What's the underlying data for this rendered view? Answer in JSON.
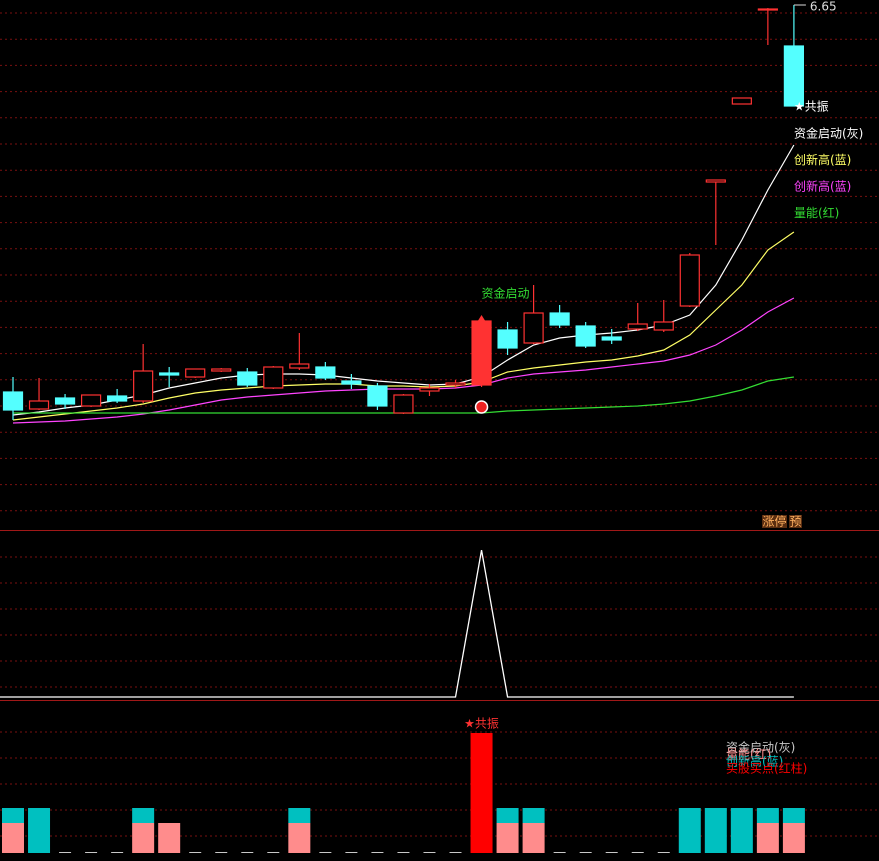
{
  "chart_data": [
    {
      "type": "candlestick",
      "ylim": [
        4.025,
        6.675
      ],
      "up_color": "#ff3232",
      "down_color": "#54ffff",
      "open": [
        4.715,
        4.63,
        4.685,
        4.645,
        4.695,
        4.67,
        4.81,
        4.79,
        4.82,
        4.815,
        4.735,
        4.835,
        4.84,
        4.77,
        4.745,
        4.61,
        4.72,
        4.75,
        4.75,
        5.025,
        4.96,
        5.11,
        5.045,
        4.99,
        5.03,
        5.025,
        5.145,
        5.765,
        6.155,
        6.625,
        6.445
      ],
      "high": [
        4.79,
        4.785,
        4.705,
        4.7,
        4.73,
        4.955,
        4.84,
        4.83,
        4.835,
        4.835,
        4.845,
        5.01,
        4.865,
        4.805,
        4.76,
        4.705,
        4.755,
        4.775,
        5.07,
        5.065,
        5.25,
        5.15,
        5.065,
        5.03,
        5.16,
        5.175,
        5.41,
        5.775,
        6.185,
        6.635,
        6.65
      ],
      "low": [
        4.575,
        4.625,
        4.63,
        4.64,
        4.66,
        4.66,
        4.74,
        4.785,
        4.815,
        4.74,
        4.73,
        4.825,
        4.775,
        4.73,
        4.625,
        4.605,
        4.695,
        4.735,
        4.74,
        4.9,
        4.955,
        5.035,
        4.935,
        4.955,
        5.02,
        5.015,
        5.14,
        5.45,
        6.155,
        6.45,
        6.145
      ],
      "close": [
        4.625,
        4.67,
        4.655,
        4.7,
        4.67,
        4.82,
        4.8,
        4.83,
        4.83,
        4.75,
        4.84,
        4.855,
        4.785,
        4.755,
        4.645,
        4.7,
        4.735,
        4.76,
        5.07,
        4.935,
        5.11,
        5.05,
        4.945,
        4.975,
        5.055,
        5.065,
        5.4,
        5.775,
        6.185,
        6.63,
        6.145
      ],
      "series": [
        {
          "name": "资金启动(灰)",
          "color": "#ffffff",
          "values": [
            4.6,
            4.615,
            4.635,
            4.65,
            4.675,
            4.7,
            4.735,
            4.76,
            4.785,
            4.8,
            4.805,
            4.805,
            4.8,
            4.785,
            4.77,
            4.76,
            4.75,
            4.755,
            4.79,
            4.875,
            4.95,
            4.985,
            5.0,
            5.01,
            5.025,
            5.05,
            5.1,
            5.25,
            5.475,
            5.725,
            5.95
          ]
        },
        {
          "name": "创新高(蓝)",
          "color": "#ffff66",
          "values": [
            4.575,
            4.59,
            4.605,
            4.62,
            4.635,
            4.655,
            4.685,
            4.71,
            4.725,
            4.735,
            4.745,
            4.75,
            4.755,
            4.755,
            4.745,
            4.745,
            4.74,
            4.745,
            4.765,
            4.815,
            4.835,
            4.85,
            4.865,
            4.875,
            4.895,
            4.925,
            5.0,
            5.125,
            5.25,
            5.425,
            5.515
          ]
        },
        {
          "name": "创新高(蓝)",
          "color": "#ff44ff",
          "values": [
            4.56,
            4.565,
            4.57,
            4.58,
            4.59,
            4.605,
            4.625,
            4.65,
            4.675,
            4.69,
            4.7,
            4.71,
            4.72,
            4.725,
            4.73,
            4.73,
            4.73,
            4.735,
            4.75,
            4.785,
            4.805,
            4.815,
            4.825,
            4.84,
            4.855,
            4.87,
            4.9,
            4.95,
            5.025,
            5.115,
            5.185
          ]
        },
        {
          "name": "量能(红)",
          "color": "#33dd33",
          "values": [
            4.61,
            4.61,
            4.61,
            4.61,
            4.61,
            4.61,
            4.61,
            4.61,
            4.61,
            4.61,
            4.61,
            4.61,
            4.61,
            4.61,
            4.61,
            4.61,
            4.61,
            4.61,
            4.61,
            4.62,
            4.625,
            4.63,
            4.635,
            4.64,
            4.645,
            4.655,
            4.67,
            4.695,
            4.725,
            4.77,
            4.79
          ]
        }
      ],
      "annotations": [
        {
          "text": "资金启动",
          "index": 18,
          "position": "above",
          "color": "#33dd33"
        },
        {
          "text": "★共振",
          "index": 30,
          "position": "below",
          "color": "#ffffff"
        }
      ],
      "badges": [
        "涨停",
        "预"
      ]
    },
    {
      "type": "line",
      "ylim": [
        0,
        1.13
      ],
      "series": [
        {
          "color": "#ffffff",
          "values": [
            0,
            0,
            0,
            0,
            0,
            0,
            0,
            0,
            0,
            0,
            0,
            0,
            0,
            0,
            0,
            0,
            0,
            0,
            1,
            0,
            0,
            0,
            0,
            0,
            0,
            0,
            0,
            0,
            0,
            0,
            0
          ]
        }
      ]
    },
    {
      "type": "bar",
      "stacked": true,
      "ylim": [
        0,
        10
      ],
      "series": [
        {
          "name": "资金启动(灰)",
          "color": "#c8c8c8",
          "values": [
            0,
            0,
            0,
            0,
            0,
            0,
            0,
            0,
            0,
            0,
            0,
            0,
            0,
            0,
            0,
            0,
            0,
            0,
            0,
            0,
            0,
            0,
            0,
            0,
            0,
            0,
            0,
            0,
            0,
            0,
            0
          ]
        },
        {
          "name": "量能(红)",
          "color": "#ff8c8c",
          "values": [
            2,
            0,
            0,
            0,
            0,
            2,
            2,
            0,
            0,
            0,
            0,
            2,
            0,
            0,
            0,
            0,
            0,
            0,
            0,
            2,
            2,
            0,
            0,
            0,
            0,
            0,
            0,
            0,
            0,
            2,
            2
          ]
        },
        {
          "name": "创新高(蓝)",
          "color": "#00c0c0",
          "values": [
            1,
            3,
            0,
            0,
            0,
            1,
            0,
            0,
            0,
            0,
            0,
            1,
            0,
            0,
            0,
            0,
            0,
            0,
            0,
            1,
            1,
            0,
            0,
            0,
            0,
            0,
            3,
            3,
            3,
            1,
            1
          ]
        },
        {
          "name": "买股买点(红柱)",
          "color": "#ff0000",
          "values": [
            0,
            0,
            0,
            0,
            0,
            0,
            0,
            0,
            0,
            0,
            0,
            0,
            0,
            0,
            0,
            0,
            0,
            0,
            8,
            0,
            0,
            0,
            0,
            0,
            0,
            0,
            0,
            0,
            0,
            0,
            0
          ]
        }
      ],
      "annotations": [
        {
          "text": "★共振",
          "index": 18,
          "position": "above",
          "color": "#ff3232"
        }
      ]
    }
  ]
}
